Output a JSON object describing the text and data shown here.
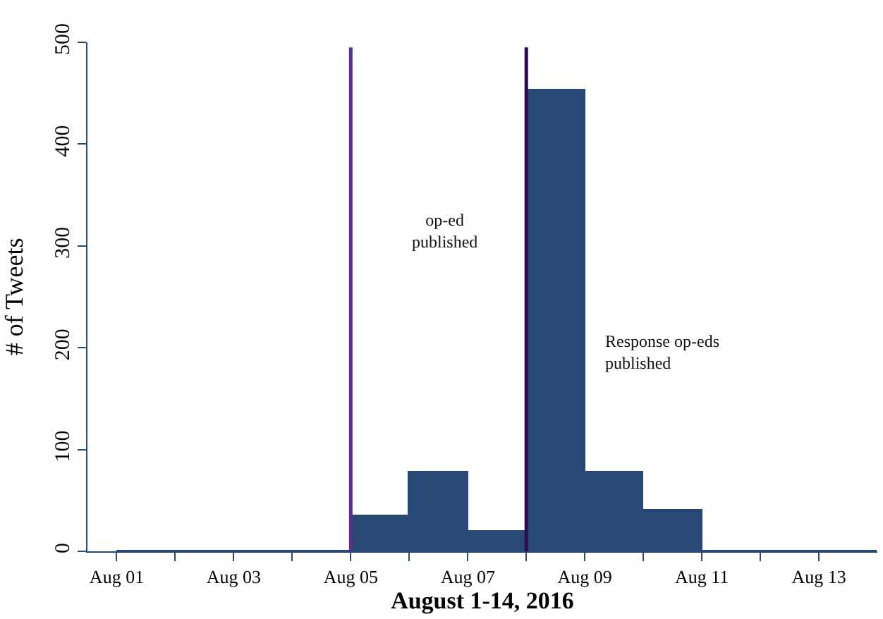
{
  "chart_data": {
    "type": "histogram",
    "xlabel": "August 1-14, 2016",
    "ylabel": "# of Tweets",
    "bins": [
      "2016-08-01",
      "2016-08-02",
      "2016-08-03",
      "2016-08-04",
      "2016-08-05",
      "2016-08-06",
      "2016-08-07",
      "2016-08-08",
      "2016-08-09",
      "2016-08-10",
      "2016-08-11",
      "2016-08-12",
      "2016-08-13",
      "2016-08-14"
    ],
    "values": [
      0,
      0,
      0,
      0,
      35,
      78,
      19,
      453,
      78,
      40,
      0,
      0,
      0
    ],
    "color": "#2a4875",
    "xlim": [
      "2016-07-31T12:00",
      "2016-08-14"
    ],
    "xticks": [
      {
        "value": "2016-08-01",
        "label": "Aug 01"
      },
      {
        "value": "2016-08-02",
        "label": null
      },
      {
        "value": "2016-08-03",
        "label": "Aug 03"
      },
      {
        "value": "2016-08-04",
        "label": null
      },
      {
        "value": "2016-08-05",
        "label": "Aug 05"
      },
      {
        "value": "2016-08-06",
        "label": null
      },
      {
        "value": "2016-08-07",
        "label": "Aug 07"
      },
      {
        "value": "2016-08-08",
        "label": null
      },
      {
        "value": "2016-08-09",
        "label": "Aug 09"
      },
      {
        "value": "2016-08-10",
        "label": null
      },
      {
        "value": "2016-08-11",
        "label": "Aug 11"
      },
      {
        "value": "2016-08-12",
        "label": null
      },
      {
        "value": "2016-08-13",
        "label": "Aug 13"
      }
    ],
    "ylim": [
      0,
      500
    ],
    "yticks": [
      0,
      100,
      200,
      300,
      400,
      500
    ],
    "ref_lines": [
      {
        "axis": "x",
        "value": "2016-08-05",
        "color": "#5b2d8e"
      },
      {
        "axis": "x",
        "value": "2016-08-08",
        "color": "#2d0a50"
      }
    ],
    "annotations": [
      "op-ed\npublished",
      "Response op-eds\npublished"
    ]
  }
}
